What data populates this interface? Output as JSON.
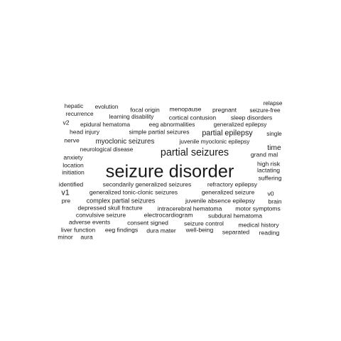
{
  "text_color": "#1a1a1a",
  "words": [
    {
      "text": "relapse",
      "weight": 1.0
    },
    {
      "text": "hepatic",
      "weight": 1.0
    },
    {
      "text": "evolution",
      "weight": 1.0
    },
    {
      "text": "focal origin",
      "weight": 1.05
    },
    {
      "text": "menopause",
      "weight": 1.05
    },
    {
      "text": "pregnant",
      "weight": 1.05
    },
    {
      "text": "seizure-free",
      "weight": 1.0
    },
    {
      "text": "recurrence",
      "weight": 1.0
    },
    {
      "text": "learning disability",
      "weight": 1.0
    },
    {
      "text": "cortical contusion",
      "weight": 1.05
    },
    {
      "text": "sleep disorders",
      "weight": 1.05
    },
    {
      "text": "v2",
      "weight": 1.05
    },
    {
      "text": "epidural hematoma",
      "weight": 1.0
    },
    {
      "text": "eeg abnormalities",
      "weight": 1.0
    },
    {
      "text": "generalized epilepsy",
      "weight": 1.0
    },
    {
      "text": "head injury",
      "weight": 1.05
    },
    {
      "text": "simple partial seizures",
      "weight": 1.05
    },
    {
      "text": "partial epilepsy",
      "weight": 1.3
    },
    {
      "text": "single",
      "weight": 1.0
    },
    {
      "text": "nerve",
      "weight": 1.05
    },
    {
      "text": "myoclonic seizures",
      "weight": 1.2
    },
    {
      "text": "juvenile myoclonic epilepsy",
      "weight": 1.0
    },
    {
      "text": "time",
      "weight": 1.25
    },
    {
      "text": "neurological disease",
      "weight": 1.0
    },
    {
      "text": "partial seizures",
      "weight": 1.75
    },
    {
      "text": "grand mal",
      "weight": 1.05
    },
    {
      "text": "anxiety",
      "weight": 1.05
    },
    {
      "text": "high risk",
      "weight": 1.05
    },
    {
      "text": "location",
      "weight": 1.05
    },
    {
      "text": "lactating",
      "weight": 1.05
    },
    {
      "text": "initiation",
      "weight": 1.05
    },
    {
      "text": "seizure disorder",
      "weight": 3.1
    },
    {
      "text": "suffering",
      "weight": 1.05
    },
    {
      "text": "identified",
      "weight": 1.05
    },
    {
      "text": "secondarily generalized seizures",
      "weight": 1.05
    },
    {
      "text": "refractory epilepsy",
      "weight": 1.05
    },
    {
      "text": "v1",
      "weight": 1.3
    },
    {
      "text": "generalized tonic-clonic seizures",
      "weight": 1.05
    },
    {
      "text": "generalized seizure",
      "weight": 1.05
    },
    {
      "text": "v0",
      "weight": 1.05
    },
    {
      "text": "pre",
      "weight": 1.05
    },
    {
      "text": "complex partial seizures",
      "weight": 1.1
    },
    {
      "text": "juvenile absence epilepsy",
      "weight": 1.05
    },
    {
      "text": "brain",
      "weight": 1.05
    },
    {
      "text": "depressed skull fracture",
      "weight": 1.05
    },
    {
      "text": "intracerebral hematoma",
      "weight": 1.05
    },
    {
      "text": "motor symptoms",
      "weight": 1.05
    },
    {
      "text": "convulsive seizure",
      "weight": 1.05
    },
    {
      "text": "electrocardiogram",
      "weight": 1.05
    },
    {
      "text": "subdural hematoma",
      "weight": 1.05
    },
    {
      "text": "adverse events",
      "weight": 1.05
    },
    {
      "text": "consent signed",
      "weight": 1.05
    },
    {
      "text": "seizure control",
      "weight": 1.05
    },
    {
      "text": "medical history",
      "weight": 1.05
    },
    {
      "text": "liver function",
      "weight": 1.05
    },
    {
      "text": "eeg findings",
      "weight": 1.05
    },
    {
      "text": "dura mater",
      "weight": 1.05
    },
    {
      "text": "well-being",
      "weight": 1.05
    },
    {
      "text": "separated",
      "weight": 1.05
    },
    {
      "text": "reading",
      "weight": 1.05
    },
    {
      "text": "minor",
      "weight": 1.05
    },
    {
      "text": "aura",
      "weight": 1.05
    }
  ]
}
